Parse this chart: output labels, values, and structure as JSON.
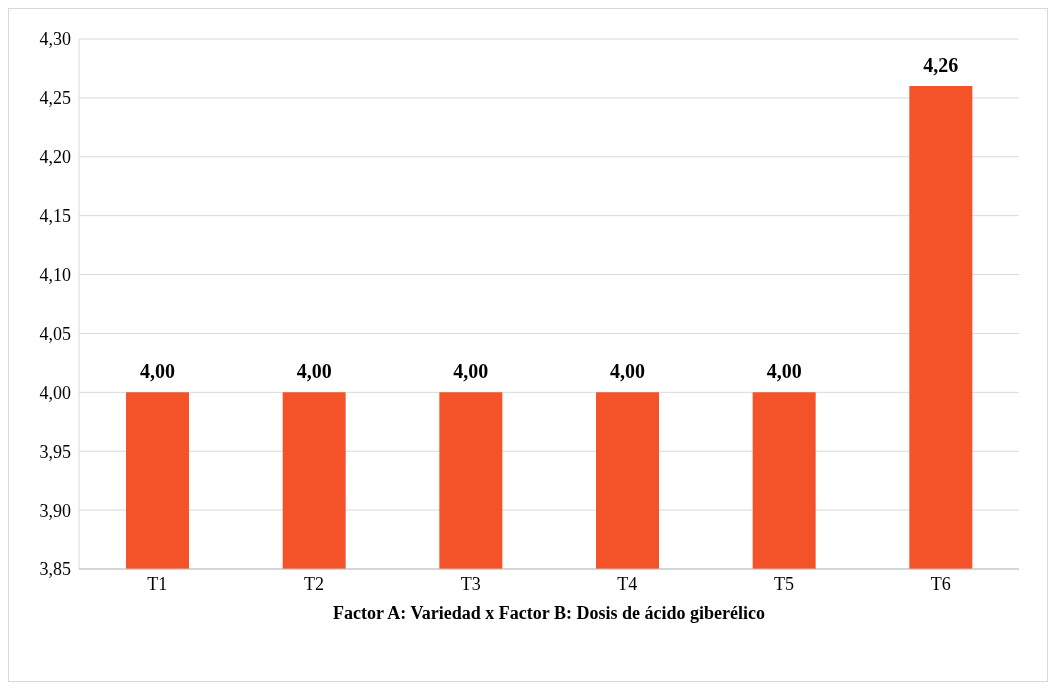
{
  "chart_data": {
    "type": "bar",
    "xlabel": "Factor A: Variedad x Factor B: Dosis de ácido giberélico",
    "categories": [
      "T1",
      "T2",
      "T3",
      "T4",
      "T5",
      "T6"
    ],
    "values": [
      4.0,
      4.0,
      4.0,
      4.0,
      4.0,
      4.26
    ],
    "value_labels": [
      "4,00",
      "4,00",
      "4,00",
      "4,00",
      "4,00",
      "4,26"
    ],
    "color": "#f4532a",
    "ylim": [
      3.85,
      4.3
    ],
    "yticks": [
      {
        "value": 3.85,
        "label": "3,85"
      },
      {
        "value": 3.9,
        "label": "3,90"
      },
      {
        "value": 3.95,
        "label": "3,95"
      },
      {
        "value": 4.0,
        "label": "4,00"
      },
      {
        "value": 4.05,
        "label": "4,05"
      },
      {
        "value": 4.1,
        "label": "4,10"
      },
      {
        "value": 4.15,
        "label": "4,15"
      },
      {
        "value": 4.2,
        "label": "4,20"
      },
      {
        "value": 4.25,
        "label": "4,25"
      },
      {
        "value": 4.3,
        "label": "4,30"
      }
    ],
    "grid": "y",
    "legend": false
  }
}
